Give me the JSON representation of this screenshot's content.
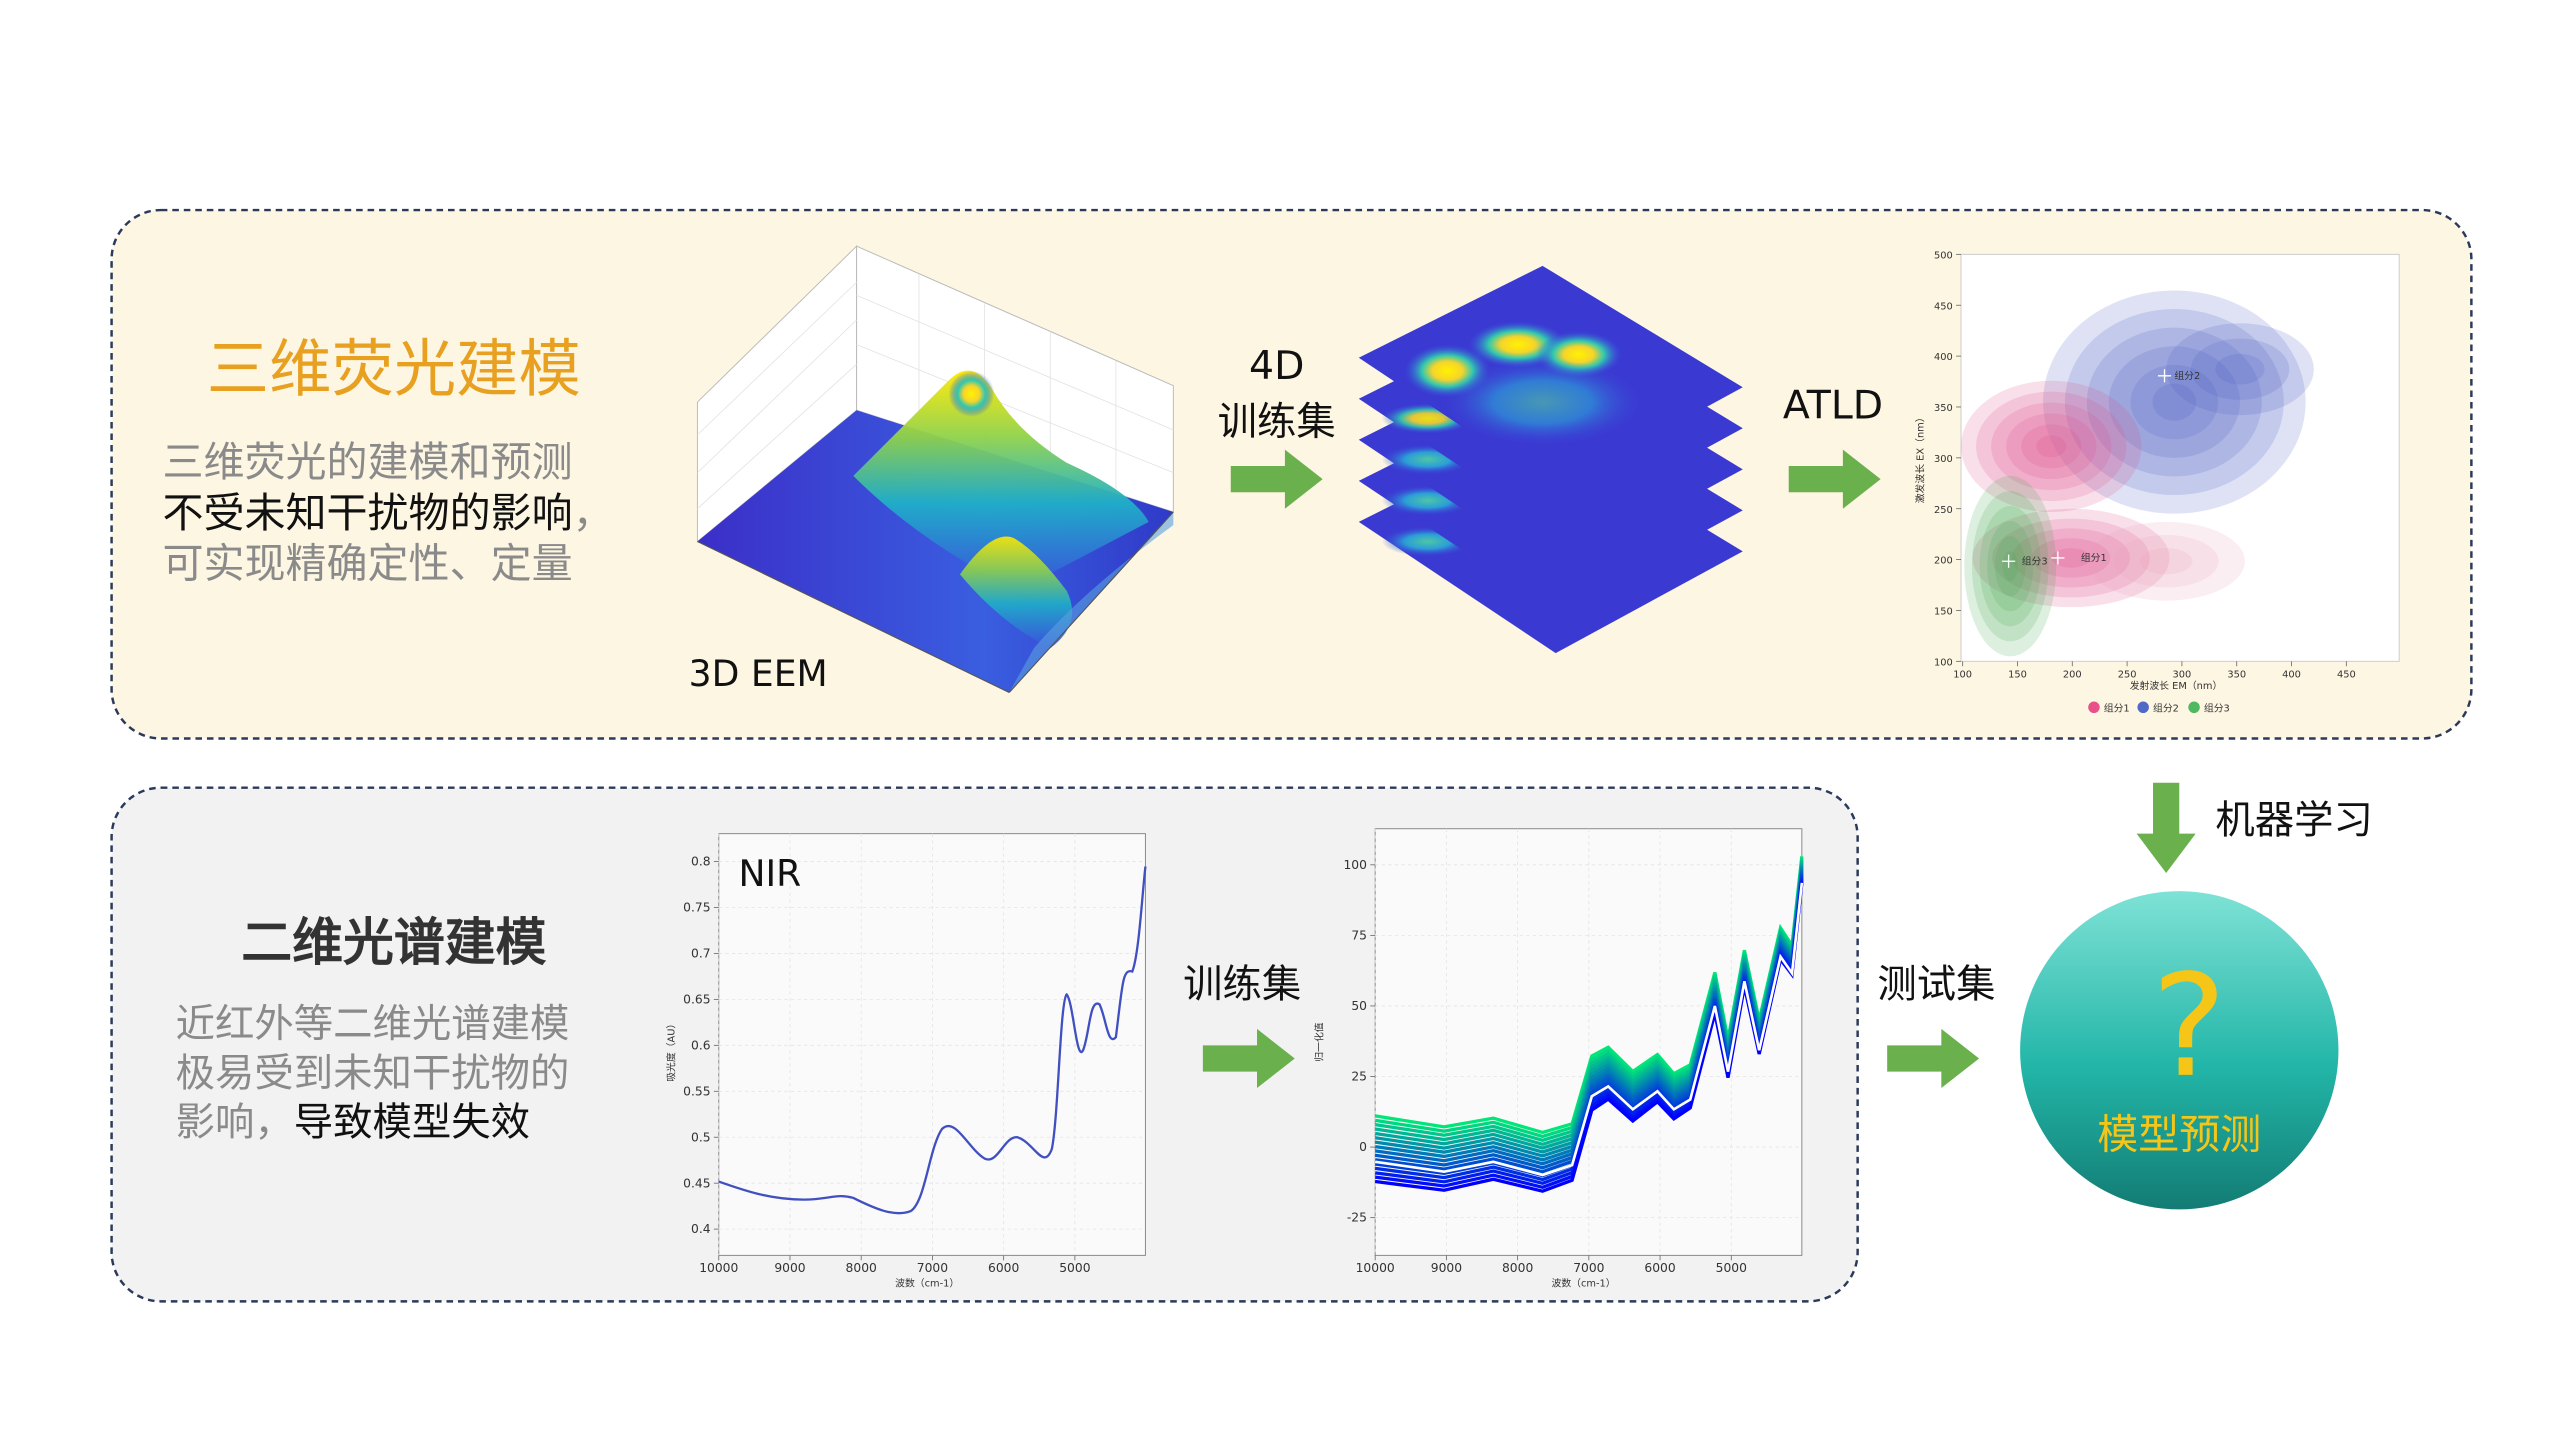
{
  "eem_panel": {
    "title": "三维荧光建模",
    "description": [
      [
        "三维荧光的建模和预测"
      ],
      [
        "不受未知干扰物的影响",
        "，"
      ],
      [
        "可实现精确定性、定量"
      ]
    ],
    "eem_label": "3D EEM",
    "training_label": [
      "4D",
      "训练集"
    ],
    "method_label": "ATLD",
    "component_chart": {
      "x_label": "发射波长 EM（nm）",
      "y_label": "激发波长 EX（nm）",
      "x_ticks": [
        100,
        150,
        200,
        250,
        300,
        350,
        400,
        450
      ],
      "y_ticks": [
        100,
        150,
        200,
        250,
        300,
        350,
        400,
        450,
        500
      ],
      "component_labels": [
        "组分1",
        "组分2",
        "组分3"
      ],
      "legend": [
        "组分1",
        "组分2",
        "组分3"
      ]
    }
  },
  "spectrum_panel": {
    "title": "二维光谱建模",
    "description": [
      [
        "近红外等二维光谱建模"
      ],
      [
        "极易受到未知干扰物的"
      ],
      [
        "影响，",
        "导致模型失效"
      ]
    ],
    "training_label": "训练集",
    "nir_chart": {
      "label": "NIR",
      "y_label": "吸光度（AU）",
      "x_label": "波数（cm-1）",
      "y_ticks": [
        0.4,
        0.45,
        0.5,
        0.55,
        0.6,
        0.65,
        0.7,
        0.75,
        0.8
      ],
      "x_ticks": [
        10000,
        9000,
        8000,
        7000,
        6000,
        5000
      ]
    },
    "normalized_chart": {
      "y_label": "归一化值",
      "x_label": "波数（cm-1）",
      "y_ticks": [
        -25,
        0,
        25,
        50,
        75,
        100
      ],
      "x_ticks": [
        10000,
        9000,
        8000,
        7000,
        6000,
        5000
      ]
    }
  },
  "test_label": "测试集",
  "learning_label": "机器学习",
  "prediction": {
    "symbol": "?",
    "label": "模型预测"
  }
}
